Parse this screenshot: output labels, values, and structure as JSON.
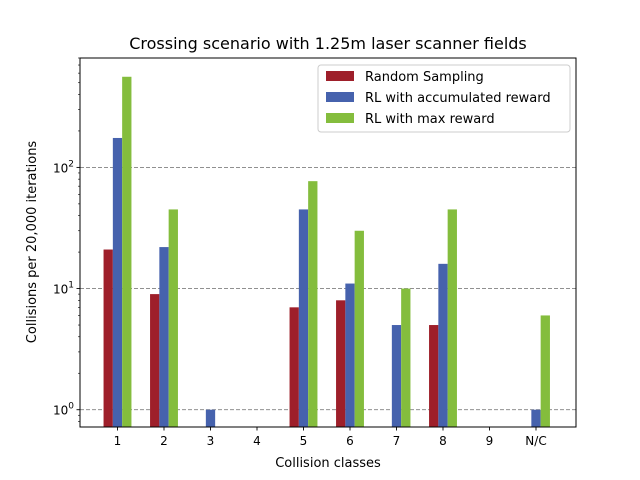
{
  "chart_data": {
    "type": "bar",
    "title": "Crossing scenario with 1.25m laser scanner fields",
    "xlabel": "Collision classes",
    "ylabel": "Collisions per 20,000 iterations",
    "yscale": "log",
    "ylim": [
      0.72,
      800
    ],
    "yticks": [
      {
        "value": 1,
        "base": "10",
        "exp": "0"
      },
      {
        "value": 10,
        "base": "10",
        "exp": "1"
      },
      {
        "value": 100,
        "base": "10",
        "exp": "2"
      }
    ],
    "grid": "horizontal-dashed-major",
    "legend_position": "top-right",
    "categories": [
      "1",
      "2",
      "3",
      "4",
      "5",
      "6",
      "7",
      "8",
      "9",
      "N/C"
    ],
    "series": [
      {
        "name": "Random Sampling",
        "color": "#9e1f2a",
        "values": [
          21,
          9,
          null,
          null,
          7,
          8,
          null,
          5,
          null,
          null
        ]
      },
      {
        "name": "RL with accumulated reward",
        "color": "#4662ad",
        "values": [
          175,
          22,
          1,
          null,
          45,
          11,
          5,
          16,
          null,
          1
        ]
      },
      {
        "name": "RL with max reward",
        "color": "#84bd3d",
        "values": [
          560,
          45,
          null,
          null,
          77,
          30,
          10,
          45,
          null,
          6
        ]
      }
    ]
  }
}
